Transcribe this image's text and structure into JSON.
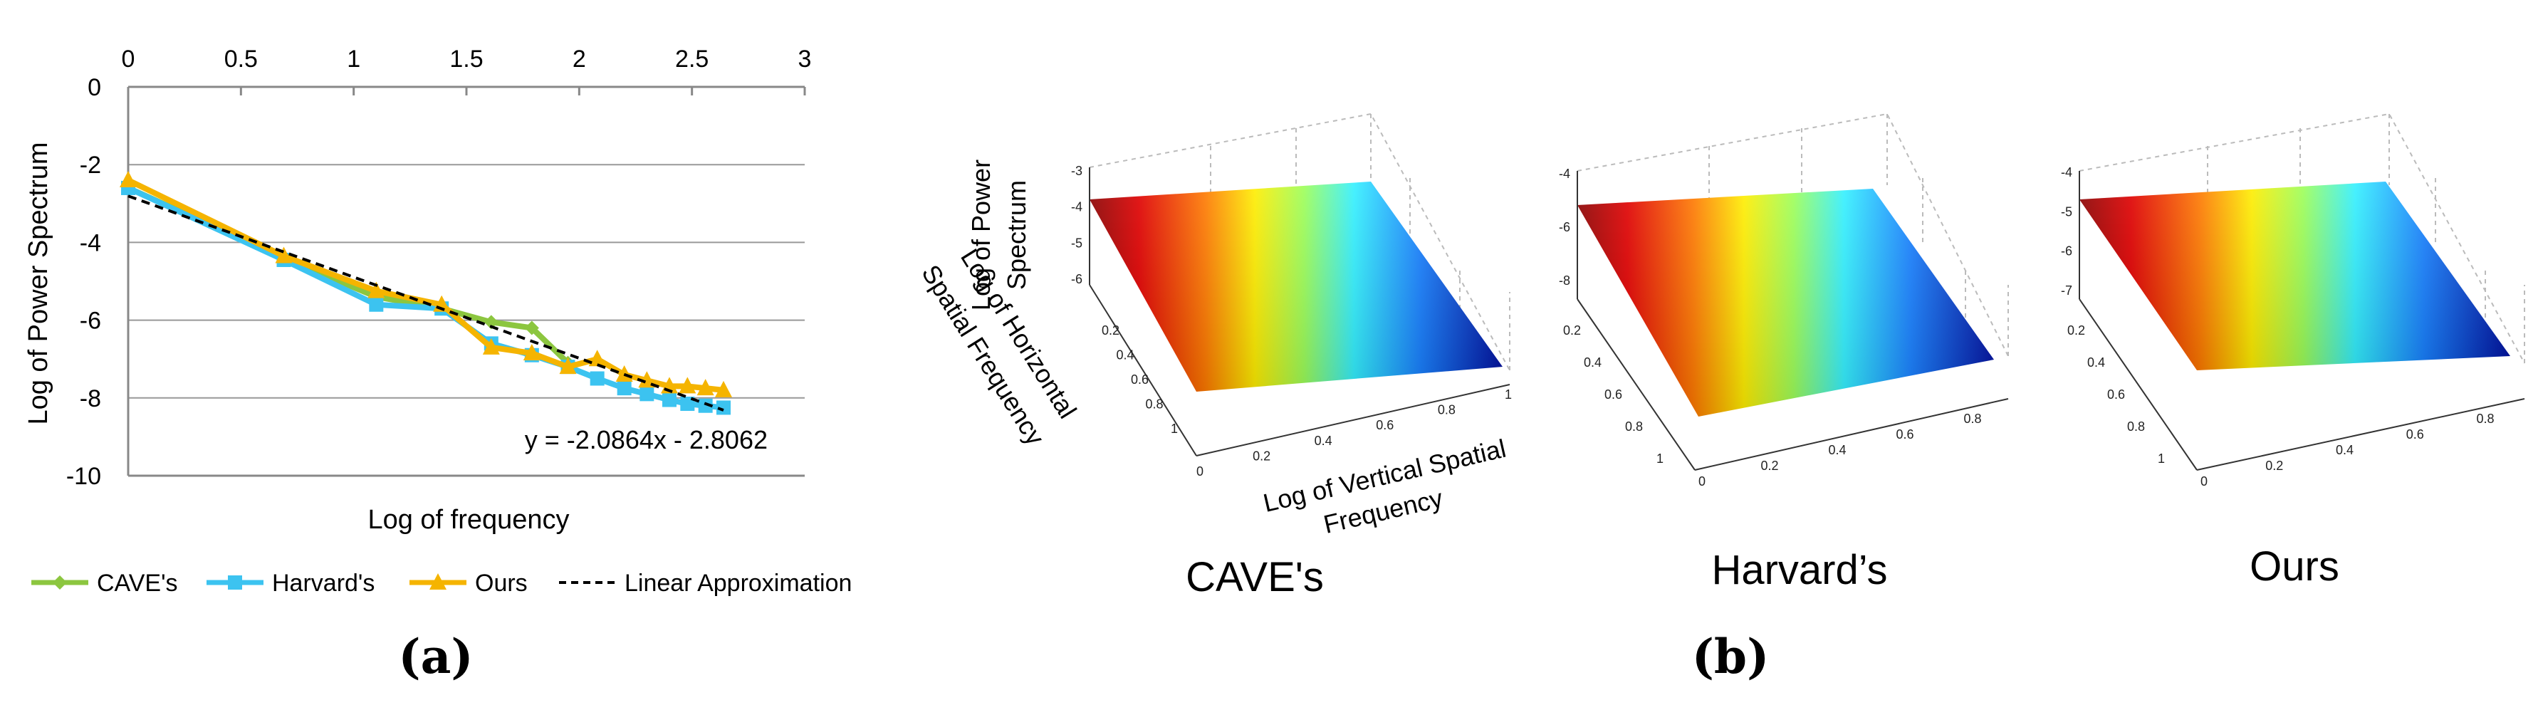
{
  "panel_a_label": "(a)",
  "panel_b_label": "(b)",
  "colors": {
    "cave": "#8cc63f",
    "harvard": "#3cc3f0",
    "ours": "#f5b400",
    "linear": "#000000",
    "grid": "#999999"
  },
  "chart_data": [
    {
      "type": "line",
      "title": "",
      "xlabel": "Log of frequency",
      "ylabel": "Log of Power Spectrum",
      "xlim": [
        0,
        3
      ],
      "ylim": [
        -10,
        0
      ],
      "x_ticks": [
        "0",
        "0.5",
        "1",
        "1.5",
        "2",
        "2.5",
        "3"
      ],
      "y_ticks": [
        "0",
        "-2",
        "-4",
        "-6",
        "-8",
        "-10"
      ],
      "x_tick_values": [
        0,
        0.5,
        1,
        1.5,
        2,
        2.5,
        3
      ],
      "y_tick_values": [
        0,
        -2,
        -4,
        -6,
        -8,
        -10
      ],
      "grid": true,
      "x_axis_position": "top",
      "legend_position": "bottom",
      "annotation": "y = -2.0864x - 2.8062",
      "series": [
        {
          "name": "CAVE's",
          "marker": "diamond",
          "x": [
            0,
            0.69,
            1.1,
            1.39,
            1.61,
            1.79,
            1.95
          ],
          "y": [
            -2.6,
            -4.4,
            -5.4,
            -5.7,
            -6.05,
            -6.2,
            -7.1
          ]
        },
        {
          "name": "Harvard's",
          "marker": "square",
          "x": [
            0,
            0.69,
            1.1,
            1.39,
            1.61,
            1.79,
            1.95,
            2.08,
            2.2,
            2.3,
            2.4,
            2.48,
            2.56,
            2.64
          ],
          "y": [
            -2.6,
            -4.45,
            -5.6,
            -5.7,
            -6.6,
            -6.9,
            -7.2,
            -7.5,
            -7.75,
            -7.9,
            -8.05,
            -8.15,
            -8.2,
            -8.25
          ]
        },
        {
          "name": "Ours",
          "marker": "triangle",
          "x": [
            0,
            0.69,
            1.1,
            1.39,
            1.61,
            1.79,
            1.95,
            2.08,
            2.2,
            2.3,
            2.4,
            2.48,
            2.56,
            2.64
          ],
          "y": [
            -2.4,
            -4.35,
            -5.25,
            -5.6,
            -6.7,
            -6.85,
            -7.2,
            -7.0,
            -7.4,
            -7.55,
            -7.7,
            -7.7,
            -7.75,
            -7.8
          ]
        },
        {
          "name": "Linear Approximation",
          "style": "dashed",
          "x": [
            0,
            2.64
          ],
          "y": [
            -2.8062,
            -8.3143
          ]
        }
      ]
    },
    {
      "type": "heatmap",
      "title": "CAVE's",
      "xlabel": "Log of Vertical Spatial Frequency",
      "ylabel": "Log of Horizontal Spatial Frequency",
      "zlabel": "Log of Power Spectrum",
      "x_ticks": [
        "0",
        "0.2",
        "0.4",
        "0.6",
        "0.8",
        "1"
      ],
      "y_ticks": [
        "0.2",
        "0.4",
        "0.6",
        "0.8",
        "1"
      ],
      "z_ticks": [
        "-3",
        "-4",
        "-5",
        "-6"
      ]
    },
    {
      "type": "heatmap",
      "title": "Harvard’s",
      "x_ticks": [
        "0",
        "0.2",
        "0.4",
        "0.6",
        "0.8"
      ],
      "y_ticks": [
        "0.2",
        "0.4",
        "0.6",
        "0.8",
        "1"
      ],
      "z_ticks": [
        "-4",
        "-6",
        "-8"
      ]
    },
    {
      "type": "heatmap",
      "title": "Ours",
      "x_ticks": [
        "0",
        "0.2",
        "0.4",
        "0.6",
        "0.8"
      ],
      "y_ticks": [
        "0.2",
        "0.4",
        "0.6",
        "0.8",
        "1"
      ],
      "z_ticks": [
        "-4",
        "-5",
        "-6",
        "-7"
      ]
    }
  ]
}
